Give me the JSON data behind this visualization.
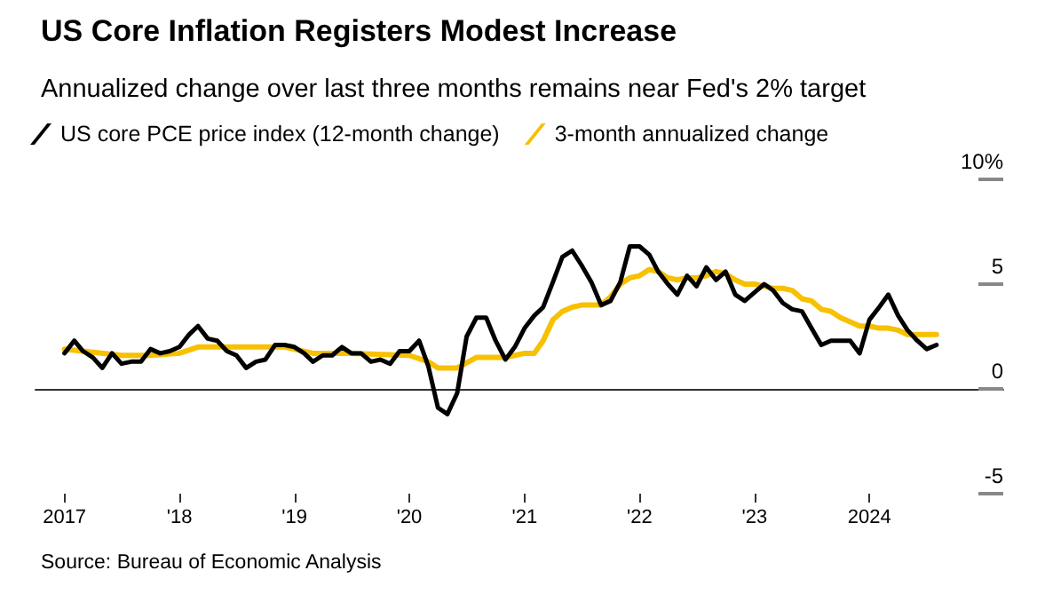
{
  "chart_data": {
    "type": "line",
    "title": "US Core Inflation Registers Modest Increase",
    "subtitle": "Annualized change over last three months remains near Fed's 2% target",
    "annotations": [
      "Source: Bureau of Economic Analysis"
    ],
    "legend": "top left",
    "marker": "none",
    "line_style": "solid",
    "xlim": [
      "2016-10",
      "2025-03"
    ],
    "xticks": [
      {
        "value": "2017-01",
        "label": "2017"
      },
      {
        "value": "2018-01",
        "label": "'18"
      },
      {
        "value": "2019-01",
        "label": "'19"
      },
      {
        "value": "2020-01",
        "label": "'20"
      },
      {
        "value": "2021-01",
        "label": "'21"
      },
      {
        "value": "2022-01",
        "label": "'22"
      },
      {
        "value": "2023-01",
        "label": "'23"
      },
      {
        "value": "2024-01",
        "label": "2024"
      }
    ],
    "ylim": [
      -5,
      10
    ],
    "yticks": [
      {
        "value": -5,
        "label": "-5"
      },
      {
        "value": 0,
        "label": "0"
      },
      {
        "value": 5,
        "label": "5"
      },
      {
        "value": 10,
        "label": "10%"
      }
    ],
    "series": [
      {
        "name": "US core PCE price index (12-month change)",
        "color": "#000000",
        "x": [
          "2017-01",
          "2017-02",
          "2017-03",
          "2017-04",
          "2017-05",
          "2017-06",
          "2017-07",
          "2017-08",
          "2017-09",
          "2017-10",
          "2017-11",
          "2017-12",
          "2018-01",
          "2018-02",
          "2018-03",
          "2018-04",
          "2018-05",
          "2018-06",
          "2018-07",
          "2018-08",
          "2018-09",
          "2018-10",
          "2018-11",
          "2018-12",
          "2019-01",
          "2019-02",
          "2019-03",
          "2019-04",
          "2019-05",
          "2019-06",
          "2019-07",
          "2019-08",
          "2019-09",
          "2019-10",
          "2019-11",
          "2019-12",
          "2020-01",
          "2020-02",
          "2020-03",
          "2020-04",
          "2020-05",
          "2020-06",
          "2020-07",
          "2020-08",
          "2020-09",
          "2020-10",
          "2020-11",
          "2020-12",
          "2021-01",
          "2021-02",
          "2021-03",
          "2021-04",
          "2021-05",
          "2021-06",
          "2021-07",
          "2021-08",
          "2021-09",
          "2021-10",
          "2021-11",
          "2021-12",
          "2022-01",
          "2022-02",
          "2022-03",
          "2022-04",
          "2022-05",
          "2022-06",
          "2022-07",
          "2022-08",
          "2022-09",
          "2022-10",
          "2022-11",
          "2022-12",
          "2023-01",
          "2023-02",
          "2023-03",
          "2023-04",
          "2023-05",
          "2023-06",
          "2023-07",
          "2023-08",
          "2023-09",
          "2023-10",
          "2023-11",
          "2023-12",
          "2024-01",
          "2024-02",
          "2024-03",
          "2024-04",
          "2024-05",
          "2024-06",
          "2024-07",
          "2024-08"
        ],
        "values": [
          1.7,
          2.3,
          1.8,
          1.5,
          1.0,
          1.7,
          1.2,
          1.3,
          1.3,
          1.9,
          1.7,
          1.8,
          2.0,
          2.6,
          3.0,
          2.4,
          2.3,
          1.8,
          1.6,
          1.0,
          1.3,
          1.4,
          2.1,
          2.1,
          2.0,
          1.7,
          1.3,
          1.6,
          1.6,
          2.0,
          1.7,
          1.7,
          1.3,
          1.4,
          1.2,
          1.8,
          1.8,
          2.3,
          1.1,
          -0.9,
          -1.2,
          -0.2,
          2.5,
          3.4,
          3.4,
          2.3,
          1.4,
          2.0,
          2.9,
          3.5,
          3.9,
          5.1,
          6.3,
          6.6,
          5.9,
          5.1,
          4.0,
          4.2,
          5.1,
          6.8,
          6.8,
          6.4,
          5.6,
          5.0,
          4.5,
          5.4,
          4.9,
          5.8,
          5.2,
          5.6,
          4.5,
          4.2,
          4.6,
          5.0,
          4.7,
          4.1,
          3.8,
          3.7,
          2.9,
          2.1,
          2.3,
          2.3,
          2.3,
          1.7,
          3.3,
          3.9,
          4.5,
          3.5,
          2.8,
          2.3,
          1.9,
          2.1
        ]
      },
      {
        "name": "3-month annualized change",
        "color": "#f7c000",
        "x": [
          "2017-01",
          "2017-03",
          "2017-07",
          "2017-10",
          "2018-01",
          "2018-03",
          "2018-06",
          "2018-09",
          "2018-12",
          "2019-03",
          "2019-07",
          "2020-01",
          "2020-03",
          "2020-04",
          "2020-06",
          "2020-08",
          "2020-11",
          "2020-12",
          "2021-01",
          "2021-02",
          "2021-03",
          "2021-04",
          "2021-05",
          "2021-06",
          "2021-07",
          "2021-08",
          "2021-09",
          "2021-10",
          "2021-11",
          "2021-12",
          "2022-01",
          "2022-02",
          "2022-03",
          "2022-04",
          "2022-05",
          "2022-06",
          "2022-07",
          "2022-08",
          "2022-09",
          "2022-10",
          "2022-11",
          "2022-12",
          "2023-01",
          "2023-02",
          "2023-03",
          "2023-04",
          "2023-05",
          "2023-06",
          "2023-07",
          "2023-08",
          "2023-09",
          "2023-10",
          "2023-11",
          "2023-12",
          "2024-01",
          "2024-02",
          "2024-03",
          "2024-04",
          "2024-05",
          "2024-06",
          "2024-07",
          "2024-08"
        ],
        "values": [
          1.9,
          1.8,
          1.6,
          1.6,
          1.7,
          2.0,
          2.0,
          2.0,
          2.0,
          1.7,
          1.7,
          1.6,
          1.3,
          1.0,
          1.0,
          1.5,
          1.5,
          1.6,
          1.7,
          1.7,
          2.3,
          3.3,
          3.7,
          3.9,
          4.0,
          4.0,
          4.0,
          4.4,
          5.0,
          5.3,
          5.4,
          5.7,
          5.6,
          5.3,
          5.2,
          5.3,
          5.3,
          5.4,
          5.6,
          5.5,
          5.2,
          5.0,
          5.0,
          4.9,
          4.8,
          4.8,
          4.7,
          4.3,
          4.2,
          3.8,
          3.7,
          3.4,
          3.2,
          3.0,
          3.0,
          2.9,
          2.9,
          2.8,
          2.6,
          2.6,
          2.6,
          2.6
        ]
      }
    ]
  }
}
